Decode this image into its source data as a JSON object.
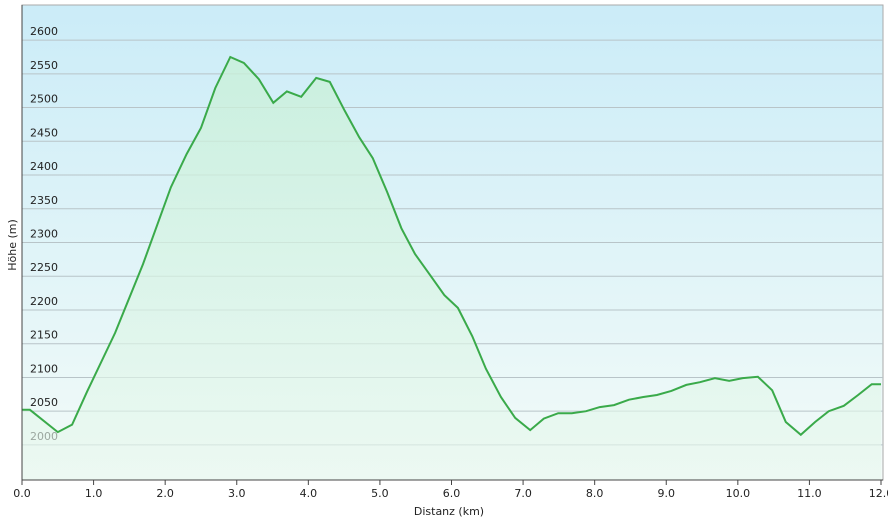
{
  "chart_data": {
    "type": "area",
    "x_label": "Distanz  (km)",
    "y_label": "Höhe (m)",
    "x": [
      0,
      0.11,
      0.5,
      0.7,
      0.91,
      1.3,
      1.69,
      2.08,
      2.3,
      2.5,
      2.7,
      2.91,
      3.1,
      3.31,
      3.51,
      3.7,
      3.9,
      4.11,
      4.3,
      4.51,
      4.71,
      4.9,
      5.1,
      5.3,
      5.49,
      5.7,
      5.9,
      6.09,
      6.29,
      6.48,
      6.69,
      6.89,
      7.1,
      7.29,
      7.49,
      7.68,
      7.88,
      8.07,
      8.27,
      8.48,
      8.68,
      8.87,
      9.07,
      9.28,
      9.47,
      9.68,
      9.88,
      10.07,
      10.28,
      10.48,
      10.67,
      10.88,
      11.08,
      11.27,
      11.48,
      11.68,
      11.87,
      12.0
    ],
    "values": [
      2052,
      2052,
      2019,
      2030,
      2079,
      2166,
      2268,
      2382,
      2431,
      2470,
      2529,
      2575,
      2566,
      2542,
      2507,
      2524,
      2516,
      2544,
      2538,
      2495,
      2456,
      2425,
      2375,
      2321,
      2283,
      2252,
      2222,
      2203,
      2161,
      2113,
      2071,
      2040,
      2022,
      2039,
      2047,
      2047,
      2050,
      2056,
      2059,
      2067,
      2071,
      2074,
      2080,
      2089,
      2093,
      2099,
      2095,
      2099,
      2101,
      2081,
      2034,
      2015,
      2034,
      2050,
      2058,
      2074,
      2090,
      2090
    ],
    "color": "#3aaa4a",
    "xlim": [
      0,
      12
    ],
    "xticks": [
      {
        "value": 0,
        "label": "0.0"
      },
      {
        "value": 1,
        "label": "1.0"
      },
      {
        "value": 2,
        "label": "2.0"
      },
      {
        "value": 3,
        "label": "3.0"
      },
      {
        "value": 4,
        "label": "4.0"
      },
      {
        "value": 5,
        "label": "5.0"
      },
      {
        "value": 6,
        "label": "6.0"
      },
      {
        "value": 7,
        "label": "7.0"
      },
      {
        "value": 8,
        "label": "8.0"
      },
      {
        "value": 9,
        "label": "9.0"
      },
      {
        "value": 10,
        "label": "10.0"
      },
      {
        "value": 11,
        "label": "11.0"
      },
      {
        "value": 12,
        "label": "12.0"
      }
    ],
    "ylim": [
      1948,
      2652
    ],
    "yticks": [
      2000,
      2050,
      2100,
      2150,
      2200,
      2250,
      2300,
      2350,
      2400,
      2450,
      2500,
      2550,
      2600
    ],
    "grid": true
  }
}
